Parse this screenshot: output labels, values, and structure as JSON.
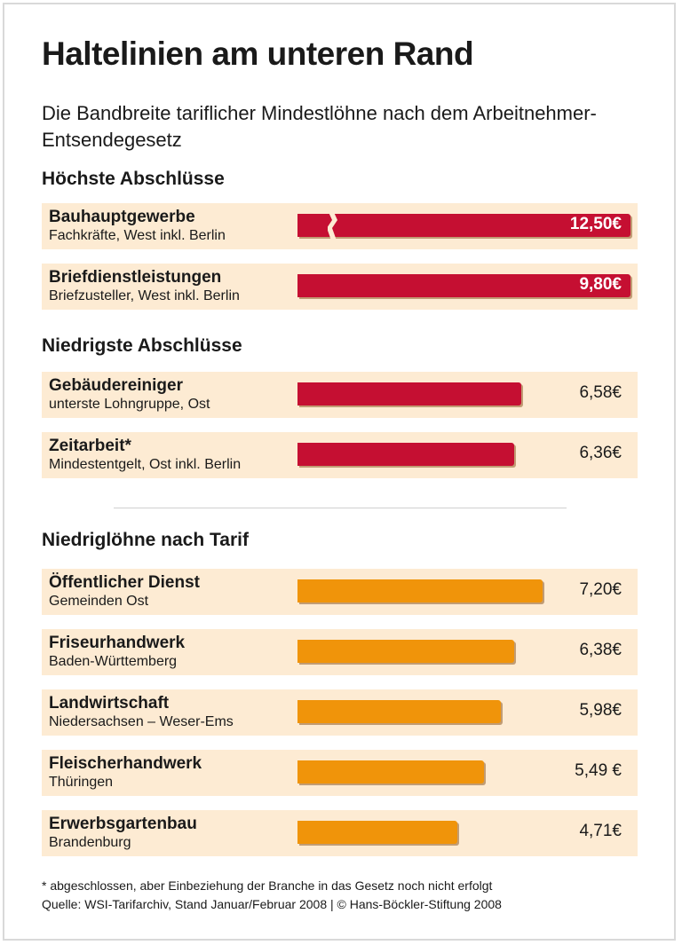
{
  "chart_data": {
    "type": "bar",
    "orientation": "horizontal",
    "title": "Haltelinien am unteren Rand",
    "subtitle": "Die Bandbreite tariflicher Mindestlöhne nach dem Arbeitnehmer-Entsendegesetz",
    "unit": "€",
    "colors": {
      "mindestlohn": "#c50f32",
      "niedriglohn": "#f0940a",
      "row_background": "#fdebd3"
    },
    "groups": [
      {
        "heading": "Höchste Abschlüsse",
        "color": "#c50f32",
        "items": [
          {
            "label": "Bauhauptgewerbe",
            "sublabel": "Fachkräfte, West inkl. Berlin",
            "value": 12.5,
            "value_label": "12,50€",
            "broken_axis": true
          },
          {
            "label": "Briefdienstleistungen",
            "sublabel": "Briefzusteller, West inkl. Berlin",
            "value": 9.8,
            "value_label": "9,80€"
          }
        ]
      },
      {
        "heading": "Niedrigste Abschlüsse",
        "color": "#c50f32",
        "items": [
          {
            "label": "Gebäudereiniger",
            "sublabel": "unterste Lohngruppe, Ost",
            "value": 6.58,
            "value_label": "6,58€"
          },
          {
            "label": "Zeitarbeit*",
            "sublabel": "Mindestentgelt, Ost inkl. Berlin",
            "value": 6.36,
            "value_label": "6,36€"
          }
        ]
      },
      {
        "heading": "Niedriglöhne nach Tarif",
        "color": "#f0940a",
        "items": [
          {
            "label": "Öffentlicher Dienst",
            "sublabel": "Gemeinden Ost",
            "value": 7.2,
            "value_label": "7,20€"
          },
          {
            "label": "Friseurhandwerk",
            "sublabel": "Baden-Württemberg",
            "value": 6.38,
            "value_label": "6,38€"
          },
          {
            "label": "Landwirtschaft",
            "sublabel": "Niedersachsen – Weser-Ems",
            "value": 5.98,
            "value_label": "5,98€"
          },
          {
            "label": "Fleischerhandwerk",
            "sublabel": "Thüringen",
            "value": 5.49,
            "value_label": "5,49 €"
          },
          {
            "label": "Erwerbsgartenbau",
            "sublabel": "Brandenburg",
            "value": 4.71,
            "value_label": "4,71€"
          }
        ]
      }
    ],
    "footnote": "* abgeschlossen, aber Einbeziehung der Branche in das Gesetz noch nicht erfolgt",
    "source": "Quelle: WSI-Tarifarchiv, Stand Januar/Februar 2008 | © Hans-Böckler-Stiftung 2008"
  }
}
